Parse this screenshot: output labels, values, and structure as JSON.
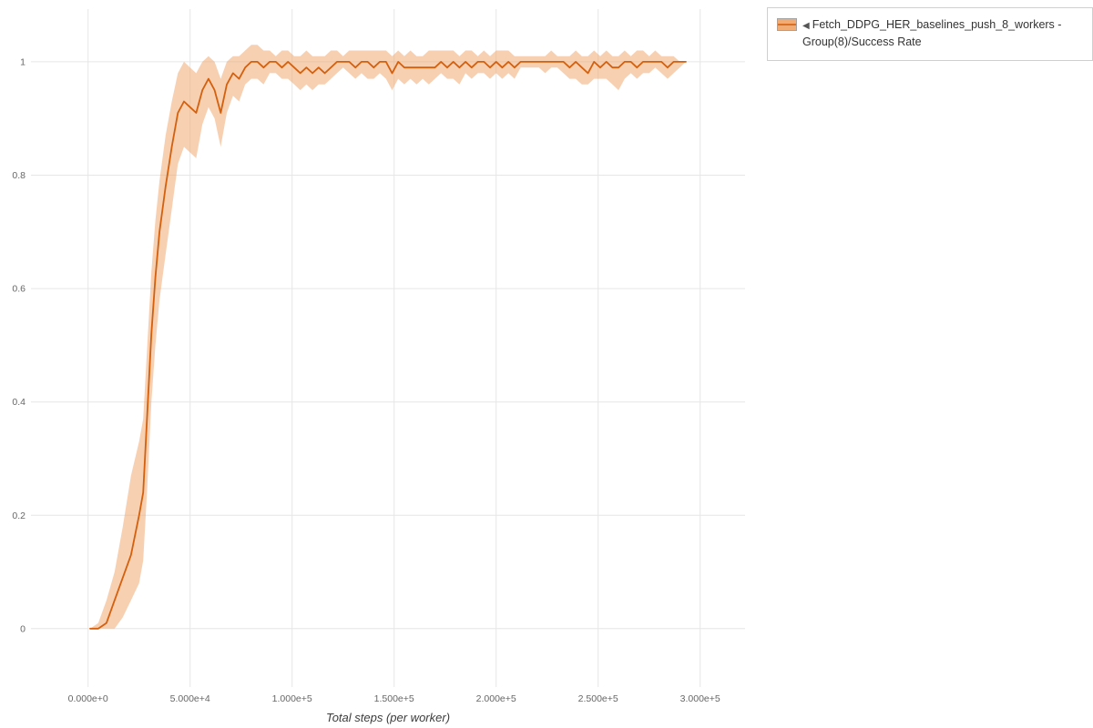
{
  "legend": {
    "toggle_glyph": "◀",
    "label": "Fetch_DDPG_HER_baselines_push_8_workers - Group(8)/Success Rate"
  },
  "chart_data": {
    "type": "line",
    "title": "",
    "xlabel": "Total steps (per worker)",
    "ylabel": "",
    "legend_position": "top-right-outside",
    "grid": true,
    "xlim": [
      -28000,
      322000
    ],
    "ylim": [
      -0.103,
      1.093
    ],
    "x_ticks": {
      "values": [
        0,
        50000,
        100000,
        150000,
        200000,
        250000,
        300000
      ],
      "labels": [
        "0.000e+0",
        "5.000e+4",
        "1.000e+5",
        "1.500e+5",
        "2.000e+5",
        "2.500e+5",
        "3.000e+5"
      ]
    },
    "y_ticks": {
      "values": [
        0,
        0.2,
        0.4,
        0.6,
        0.8,
        1
      ],
      "labels": [
        "0",
        "0.2",
        "0.4",
        "0.6",
        "0.8",
        "1"
      ]
    },
    "colors": {
      "line": "#d4600d",
      "band": "#f0a265",
      "band_opacity": 0.5,
      "grid": "#e6e6e6",
      "tick_label": "#666666"
    },
    "series": [
      {
        "name": "Fetch_DDPG_HER_baselines_push_8_workers - Group(8)/Success Rate",
        "points_format": [
          "x_steps",
          "mean",
          "band_low",
          "band_high"
        ],
        "points": [
          [
            1000,
            0.0,
            0.0,
            0.0
          ],
          [
            5000,
            0.0,
            0.0,
            0.01
          ],
          [
            9000,
            0.01,
            0.0,
            0.05
          ],
          [
            13000,
            0.05,
            0.0,
            0.1
          ],
          [
            17000,
            0.09,
            0.02,
            0.18
          ],
          [
            21000,
            0.13,
            0.05,
            0.27
          ],
          [
            25000,
            0.2,
            0.08,
            0.33
          ],
          [
            27000,
            0.24,
            0.12,
            0.37
          ],
          [
            29000,
            0.38,
            0.25,
            0.5
          ],
          [
            31000,
            0.52,
            0.4,
            0.63
          ],
          [
            33000,
            0.62,
            0.5,
            0.72
          ],
          [
            35000,
            0.7,
            0.58,
            0.79
          ],
          [
            38000,
            0.78,
            0.66,
            0.87
          ],
          [
            41000,
            0.85,
            0.74,
            0.93
          ],
          [
            44000,
            0.91,
            0.82,
            0.98
          ],
          [
            47000,
            0.93,
            0.85,
            1.0
          ],
          [
            50000,
            0.92,
            0.84,
            0.99
          ],
          [
            53000,
            0.91,
            0.83,
            0.98
          ],
          [
            56000,
            0.95,
            0.89,
            1.0
          ],
          [
            59000,
            0.97,
            0.92,
            1.01
          ],
          [
            62000,
            0.95,
            0.9,
            1.0
          ],
          [
            65000,
            0.91,
            0.85,
            0.97
          ],
          [
            68000,
            0.96,
            0.91,
            1.0
          ],
          [
            71000,
            0.98,
            0.94,
            1.01
          ],
          [
            74000,
            0.97,
            0.93,
            1.01
          ],
          [
            77000,
            0.99,
            0.96,
            1.02
          ],
          [
            80000,
            1.0,
            0.97,
            1.03
          ],
          [
            83000,
            1.0,
            0.97,
            1.03
          ],
          [
            86000,
            0.99,
            0.96,
            1.02
          ],
          [
            89000,
            1.0,
            0.98,
            1.02
          ],
          [
            92000,
            1.0,
            0.98,
            1.01
          ],
          [
            95000,
            0.99,
            0.97,
            1.02
          ],
          [
            98000,
            1.0,
            0.97,
            1.02
          ],
          [
            101000,
            0.99,
            0.96,
            1.01
          ],
          [
            104000,
            0.98,
            0.95,
            1.01
          ],
          [
            107000,
            0.99,
            0.96,
            1.02
          ],
          [
            110000,
            0.98,
            0.95,
            1.01
          ],
          [
            113000,
            0.99,
            0.96,
            1.01
          ],
          [
            116000,
            0.98,
            0.96,
            1.01
          ],
          [
            119000,
            0.99,
            0.97,
            1.02
          ],
          [
            122000,
            1.0,
            0.98,
            1.02
          ],
          [
            125000,
            1.0,
            0.99,
            1.01
          ],
          [
            128000,
            1.0,
            0.98,
            1.02
          ],
          [
            131000,
            0.99,
            0.97,
            1.02
          ],
          [
            134000,
            1.0,
            0.98,
            1.02
          ],
          [
            137000,
            1.0,
            0.97,
            1.02
          ],
          [
            140000,
            0.99,
            0.97,
            1.02
          ],
          [
            143000,
            1.0,
            0.98,
            1.02
          ],
          [
            146000,
            1.0,
            0.97,
            1.02
          ],
          [
            149000,
            0.98,
            0.95,
            1.01
          ],
          [
            152000,
            1.0,
            0.97,
            1.02
          ],
          [
            155000,
            0.99,
            0.96,
            1.01
          ],
          [
            158000,
            0.99,
            0.97,
            1.02
          ],
          [
            161000,
            0.99,
            0.96,
            1.01
          ],
          [
            164000,
            0.99,
            0.97,
            1.01
          ],
          [
            167000,
            0.99,
            0.96,
            1.02
          ],
          [
            170000,
            0.99,
            0.97,
            1.02
          ],
          [
            173000,
            1.0,
            0.98,
            1.02
          ],
          [
            176000,
            0.99,
            0.97,
            1.02
          ],
          [
            179000,
            1.0,
            0.97,
            1.02
          ],
          [
            182000,
            0.99,
            0.96,
            1.01
          ],
          [
            185000,
            1.0,
            0.98,
            1.02
          ],
          [
            188000,
            0.99,
            0.97,
            1.02
          ],
          [
            191000,
            1.0,
            0.98,
            1.01
          ],
          [
            194000,
            1.0,
            0.98,
            1.02
          ],
          [
            197000,
            0.99,
            0.97,
            1.01
          ],
          [
            200000,
            1.0,
            0.98,
            1.02
          ],
          [
            203000,
            0.99,
            0.97,
            1.02
          ],
          [
            206000,
            1.0,
            0.98,
            1.02
          ],
          [
            209000,
            0.99,
            0.97,
            1.01
          ],
          [
            212000,
            1.0,
            0.99,
            1.01
          ],
          [
            215000,
            1.0,
            0.99,
            1.01
          ],
          [
            218000,
            1.0,
            0.99,
            1.01
          ],
          [
            221000,
            1.0,
            0.99,
            1.01
          ],
          [
            224000,
            1.0,
            0.98,
            1.01
          ],
          [
            227000,
            1.0,
            0.99,
            1.02
          ],
          [
            230000,
            1.0,
            0.99,
            1.01
          ],
          [
            233000,
            1.0,
            0.98,
            1.01
          ],
          [
            236000,
            0.99,
            0.97,
            1.01
          ],
          [
            239000,
            1.0,
            0.97,
            1.02
          ],
          [
            242000,
            0.99,
            0.96,
            1.01
          ],
          [
            245000,
            0.98,
            0.96,
            1.01
          ],
          [
            248000,
            1.0,
            0.97,
            1.02
          ],
          [
            251000,
            0.99,
            0.97,
            1.01
          ],
          [
            254000,
            1.0,
            0.97,
            1.02
          ],
          [
            257000,
            0.99,
            0.96,
            1.01
          ],
          [
            260000,
            0.99,
            0.95,
            1.01
          ],
          [
            263000,
            1.0,
            0.97,
            1.02
          ],
          [
            266000,
            1.0,
            0.98,
            1.01
          ],
          [
            269000,
            0.99,
            0.97,
            1.02
          ],
          [
            272000,
            1.0,
            0.98,
            1.02
          ],
          [
            275000,
            1.0,
            0.98,
            1.01
          ],
          [
            278000,
            1.0,
            0.99,
            1.02
          ],
          [
            281000,
            1.0,
            0.98,
            1.01
          ],
          [
            284000,
            0.99,
            0.97,
            1.01
          ],
          [
            287000,
            1.0,
            0.98,
            1.01
          ],
          [
            290000,
            1.0,
            0.99,
            1.0
          ],
          [
            293000,
            1.0,
            1.0,
            1.0
          ]
        ]
      }
    ]
  }
}
